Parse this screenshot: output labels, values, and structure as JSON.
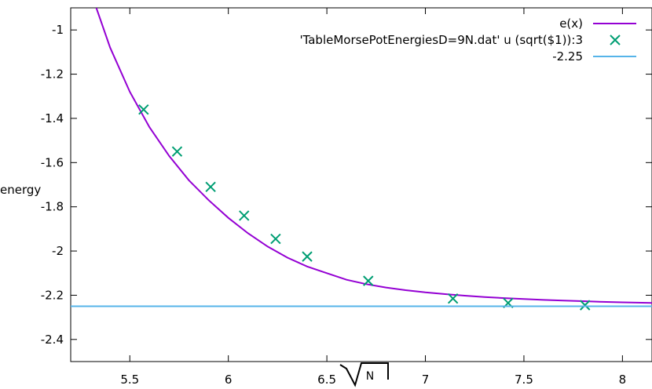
{
  "chart_data": {
    "type": "line",
    "title": "",
    "xlabel": "N",
    "ylabel": "energy",
    "xlim": [
      5.2,
      8.15
    ],
    "ylim": [
      -2.5,
      -0.9
    ],
    "xticks": [
      5.5,
      6,
      6.5,
      7,
      7.5,
      8
    ],
    "yticks": [
      -1,
      -1.2,
      -1.4,
      -1.6,
      -1.8,
      -2,
      -2.2,
      -2.4
    ],
    "xtick_labels": [
      "5.5",
      "6",
      "6.5",
      "7",
      "7.5",
      "8"
    ],
    "ytick_labels": [
      "-1",
      "-1.2",
      "-1.4",
      "-1.6",
      "-1.8",
      "-2",
      "-2.2",
      "-2.4"
    ],
    "grid": false,
    "legend_position": "top-right",
    "series": [
      {
        "name": "e(x)",
        "kind": "line",
        "color": "#9400d3",
        "x": [
          5.33,
          5.4,
          5.5,
          5.6,
          5.7,
          5.8,
          5.9,
          6.0,
          6.1,
          6.2,
          6.3,
          6.4,
          6.5,
          6.6,
          6.7,
          6.8,
          6.9,
          7.0,
          7.1,
          7.2,
          7.3,
          7.4,
          7.5,
          7.6,
          7.7,
          7.8,
          7.9,
          8.0,
          8.15
        ],
        "y": [
          -0.9,
          -1.08,
          -1.28,
          -1.44,
          -1.57,
          -1.68,
          -1.77,
          -1.85,
          -1.92,
          -1.98,
          -2.03,
          -2.07,
          -2.1,
          -2.13,
          -2.15,
          -2.165,
          -2.177,
          -2.187,
          -2.195,
          -2.202,
          -2.208,
          -2.213,
          -2.217,
          -2.221,
          -2.224,
          -2.227,
          -2.23,
          -2.232,
          -2.235
        ]
      },
      {
        "name": "'TableMorsePotEnergiesD=9N.dat'  u (sqrt($1)):3",
        "kind": "points",
        "color": "#009e73",
        "x": [
          5.57,
          5.74,
          5.91,
          6.08,
          6.24,
          6.4,
          6.71,
          7.14,
          7.42,
          7.81
        ],
        "y": [
          -1.36,
          -1.55,
          -1.71,
          -1.84,
          -1.945,
          -2.025,
          -2.135,
          -2.215,
          -2.235,
          -2.245
        ]
      },
      {
        "name": "-2.25",
        "kind": "hline",
        "color": "#56b4e9",
        "y": -2.25
      }
    ]
  }
}
